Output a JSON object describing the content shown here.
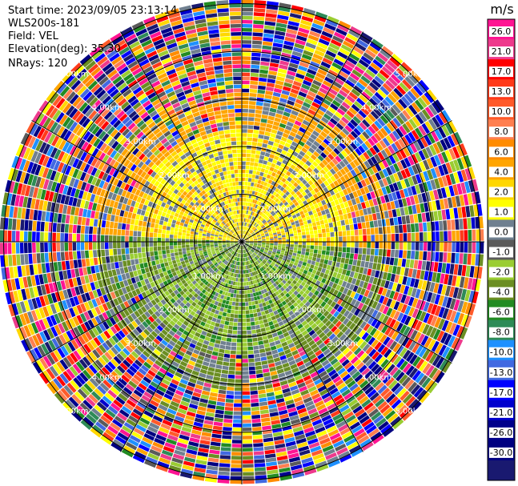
{
  "info": {
    "start_time": "Start time: 2023/09/05 23:13:14",
    "station": "WLS200s-181",
    "field": "Field: VEL",
    "elevation": "Elevation(deg): 35.30",
    "nrays": "NRays: 120"
  },
  "chart_data": {
    "type": "heatmap",
    "projection": "polar PPI",
    "field": "VEL",
    "n_rays": 120,
    "ring_labels": [
      "1.00km",
      "2.00km",
      "3.00km",
      "4.00km",
      "5.00km"
    ],
    "colorbar": {
      "unit": "m/s",
      "ticks": [
        "26.0",
        "21.0",
        "17.0",
        "13.0",
        "10.0",
        "8.0",
        "6.0",
        "4.0",
        "2.0",
        "1.0",
        "0.0",
        "-1.0",
        "-2.0",
        "-4.0",
        "-6.0",
        "-8.0",
        "-10.0",
        "-13.0",
        "-17.0",
        "-21.0",
        "-26.0",
        "-30.0"
      ],
      "colors": [
        "#ff1493",
        "#ee3a8c",
        "#ff0000",
        "#ff3a1a",
        "#ff5a2a",
        "#ff7f50",
        "#ff8c00",
        "#ffa500",
        "#ffd700",
        "#ffff00",
        "#708090",
        "#5a5a5a",
        "#9acd32",
        "#6b8e23",
        "#228b22",
        "#2e8b57",
        "#1e90ff",
        "#4169e1",
        "#0000ff",
        "#0000cd",
        "#00008b",
        "#000080",
        "#191970"
      ]
    }
  }
}
